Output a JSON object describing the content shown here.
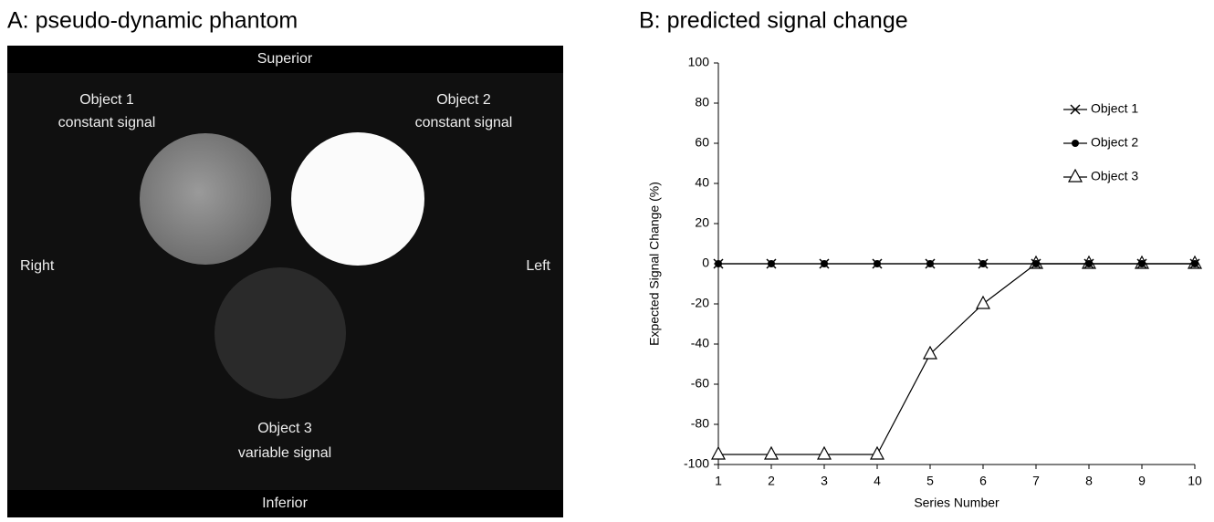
{
  "phantom": {
    "title": "A: pseudo-dynamic phantom",
    "top": "Superior",
    "bottom": "Inferior",
    "left": "Right",
    "right": "Left",
    "objects": [
      {
        "name": "Object 1",
        "note": "constant signal"
      },
      {
        "name": "Object 2",
        "note": "constant signal"
      },
      {
        "name": "Object 3",
        "note": "variable signal"
      }
    ]
  },
  "chart_data": {
    "type": "line",
    "title": "B: predicted signal change",
    "x_label": "Series Number",
    "y_label": "Expected Signal Change (%)",
    "x": [
      1,
      2,
      3,
      4,
      5,
      6,
      7,
      8,
      9,
      10
    ],
    "xlim": [
      1,
      10
    ],
    "xticks": [
      1,
      2,
      3,
      4,
      5,
      6,
      7,
      8,
      9,
      10
    ],
    "ylim": [
      -100,
      100
    ],
    "yticks": [
      -100,
      -80,
      -60,
      -40,
      -20,
      0,
      20,
      40,
      60,
      80,
      100
    ],
    "grid": false,
    "legend": "upper right",
    "series": [
      {
        "name": "Object 1",
        "color": "#000000",
        "marker": "x",
        "values": [
          0,
          0,
          0,
          0,
          0,
          0,
          0,
          0,
          0,
          0
        ]
      },
      {
        "name": "Object 2",
        "color": "#000000",
        "marker": "circle",
        "values": [
          0,
          0,
          0,
          0,
          0,
          0,
          0,
          0,
          0,
          0
        ]
      },
      {
        "name": "Object 3",
        "color": "#000000",
        "marker": "triangle",
        "values": [
          -95,
          -95,
          -95,
          -95,
          -45,
          -20,
          0,
          0,
          0,
          0
        ]
      }
    ]
  }
}
